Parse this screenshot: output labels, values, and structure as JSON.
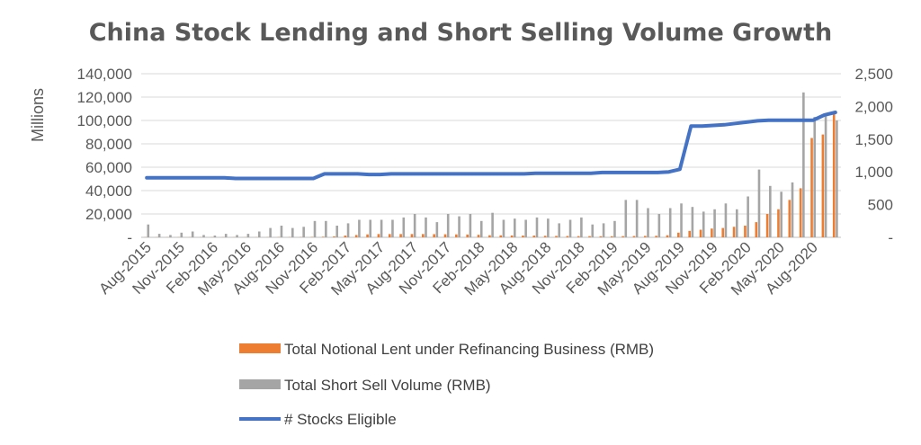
{
  "chart_data": {
    "type": "bar",
    "title": "China Stock Lending and Short Selling Volume Growth",
    "ylabel": "Millions",
    "ylim": [
      0,
      140000
    ],
    "y2lim": [
      0,
      2500
    ],
    "y_ticks": [
      "-",
      "20,000",
      "40,000",
      "60,000",
      "80,000",
      "100,000",
      "120,000",
      "140,000"
    ],
    "y2_ticks": [
      "-",
      "500",
      "1,000",
      "1,500",
      "2,000",
      "2,500"
    ],
    "x_tick_labels": [
      "Aug-2015",
      "Nov-2015",
      "Feb-2016",
      "May-2016",
      "Aug-2016",
      "Nov-2016",
      "Feb-2017",
      "May-2017",
      "Aug-2017",
      "Nov-2017",
      "Feb-2018",
      "May-2018",
      "Aug-2018",
      "Nov-2018",
      "Feb-2019",
      "May-2019",
      "Aug-2019",
      "Nov-2019",
      "Feb-2020",
      "May-2020",
      "Aug-2020"
    ],
    "categories": [
      "Aug-2015",
      "Sep-2015",
      "Oct-2015",
      "Nov-2015",
      "Dec-2015",
      "Jan-2016",
      "Feb-2016",
      "Mar-2016",
      "Apr-2016",
      "May-2016",
      "Jun-2016",
      "Jul-2016",
      "Aug-2016",
      "Sep-2016",
      "Oct-2016",
      "Nov-2016",
      "Dec-2016",
      "Jan-2017",
      "Feb-2017",
      "Mar-2017",
      "Apr-2017",
      "May-2017",
      "Jun-2017",
      "Jul-2017",
      "Aug-2017",
      "Sep-2017",
      "Oct-2017",
      "Nov-2017",
      "Dec-2017",
      "Jan-2018",
      "Feb-2018",
      "Mar-2018",
      "Apr-2018",
      "May-2018",
      "Jun-2018",
      "Jul-2018",
      "Aug-2018",
      "Sep-2018",
      "Oct-2018",
      "Nov-2018",
      "Dec-2018",
      "Jan-2019",
      "Feb-2019",
      "Mar-2019",
      "Apr-2019",
      "May-2019",
      "Jun-2019",
      "Jul-2019",
      "Aug-2019",
      "Sep-2019",
      "Oct-2019",
      "Nov-2019",
      "Dec-2019",
      "Jan-2020",
      "Feb-2020",
      "Mar-2020",
      "Apr-2020",
      "May-2020",
      "Jun-2020",
      "Jul-2020",
      "Aug-2020",
      "Sep-2020",
      "Oct-2020"
    ],
    "legend_position": "bottom",
    "grid": true,
    "series": [
      {
        "name": "Total Notional Lent under Refinancing Business (RMB)",
        "kind": "bar",
        "axis": "left",
        "color": "#ED7D31",
        "values": [
          100,
          100,
          100,
          100,
          100,
          100,
          100,
          100,
          100,
          100,
          100,
          100,
          200,
          200,
          200,
          300,
          500,
          800,
          1500,
          2000,
          2500,
          2800,
          2800,
          2800,
          2800,
          2800,
          2700,
          2600,
          2500,
          2400,
          2200,
          1800,
          1700,
          1600,
          1500,
          1500,
          1300,
          1200,
          1100,
          1000,
          1000,
          900,
          900,
          1000,
          1100,
          1200,
          1300,
          1800,
          4000,
          5500,
          6500,
          7500,
          8000,
          9000,
          10000,
          13000,
          20000,
          24000,
          32000,
          42000,
          85000,
          88000,
          106000
        ]
      },
      {
        "name": "Total Short Sell Volume (RMB)",
        "kind": "bar",
        "axis": "left",
        "color": "#A5A5A5",
        "values": [
          11000,
          3000,
          2000,
          4000,
          5000,
          2000,
          1500,
          3000,
          2000,
          3000,
          5000,
          8000,
          10000,
          8000,
          9000,
          14000,
          14000,
          10000,
          12000,
          15000,
          15000,
          15000,
          15000,
          17000,
          20000,
          17000,
          13000,
          20000,
          18000,
          20000,
          14000,
          21000,
          15000,
          16000,
          15000,
          17000,
          16000,
          12000,
          15000,
          17000,
          11000,
          12000,
          14000,
          32000,
          32000,
          25000,
          20000,
          25000,
          29000,
          26000,
          22000,
          24000,
          29000,
          24000,
          35000,
          58000,
          44000,
          39000,
          47000,
          124000,
          103000,
          104000,
          100000
        ]
      },
      {
        "name": "# Stocks Eligible",
        "kind": "line",
        "axis": "right",
        "color": "#4472C4",
        "values": [
          910,
          910,
          910,
          910,
          910,
          910,
          910,
          910,
          900,
          900,
          900,
          900,
          900,
          900,
          900,
          900,
          970,
          970,
          970,
          970,
          960,
          960,
          970,
          970,
          970,
          970,
          970,
          970,
          970,
          970,
          970,
          970,
          970,
          970,
          970,
          980,
          980,
          980,
          980,
          980,
          980,
          990,
          990,
          990,
          990,
          990,
          990,
          1000,
          1040,
          1700,
          1700,
          1710,
          1720,
          1740,
          1760,
          1780,
          1790,
          1790,
          1790,
          1790,
          1790,
          1870,
          1910
        ]
      }
    ]
  }
}
